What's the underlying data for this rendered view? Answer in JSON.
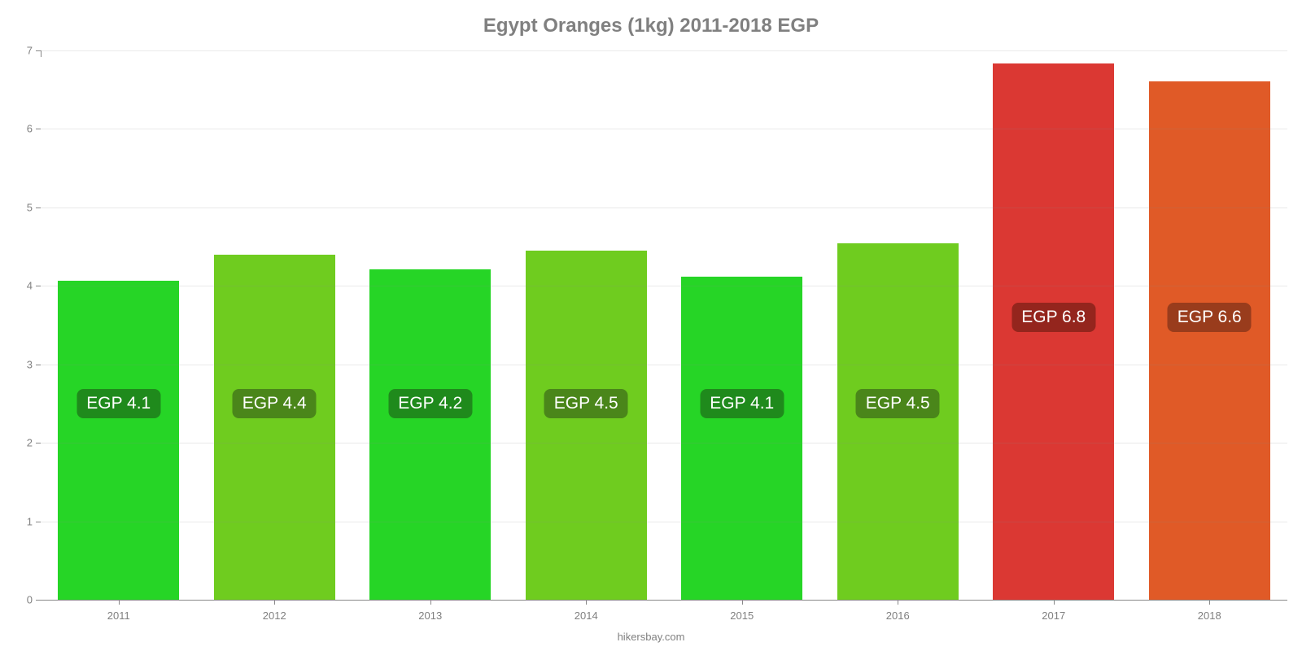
{
  "chart": {
    "type": "bar",
    "title": "Egypt Oranges (1kg) 2011-2018 EGP",
    "title_color": "#808080",
    "title_fontsize": 24,
    "credit": "hikersbay.com",
    "credit_color": "#808080",
    "background_color": "#ffffff",
    "axis_color": "#888888",
    "grid_color": "#e6e6e6",
    "label_color": "#808080",
    "tick_fontsize": 13,
    "ylim": [
      0,
      7
    ],
    "yticks": [
      0,
      1,
      2,
      3,
      4,
      5,
      6,
      7
    ],
    "badge_vcenter_value": 2.5,
    "badge_vcenter_value_high": 3.6,
    "badge_high_threshold": 5.0,
    "bar_width_pct": 78,
    "data": [
      {
        "year": "2011",
        "value": 4.07,
        "label": "EGP 4.1",
        "bar_color": "#26d526",
        "badge_color": "#1f8a1c"
      },
      {
        "year": "2012",
        "value": 4.4,
        "label": "EGP 4.4",
        "bar_color": "#6fcc1f",
        "badge_color": "#4a861a"
      },
      {
        "year": "2013",
        "value": 4.21,
        "label": "EGP 4.2",
        "bar_color": "#26d526",
        "badge_color": "#1f8a1c"
      },
      {
        "year": "2014",
        "value": 4.45,
        "label": "EGP 4.5",
        "bar_color": "#6fcc1f",
        "badge_color": "#4a861a"
      },
      {
        "year": "2015",
        "value": 4.12,
        "label": "EGP 4.1",
        "bar_color": "#26d526",
        "badge_color": "#1f8a1c"
      },
      {
        "year": "2016",
        "value": 4.54,
        "label": "EGP 4.5",
        "bar_color": "#6fcc1f",
        "badge_color": "#4a861a"
      },
      {
        "year": "2017",
        "value": 6.83,
        "label": "EGP 6.8",
        "bar_color": "#db3833",
        "badge_color": "#94251d"
      },
      {
        "year": "2018",
        "value": 6.61,
        "label": "EGP 6.6",
        "bar_color": "#e05a27",
        "badge_color": "#993c1c"
      }
    ]
  }
}
